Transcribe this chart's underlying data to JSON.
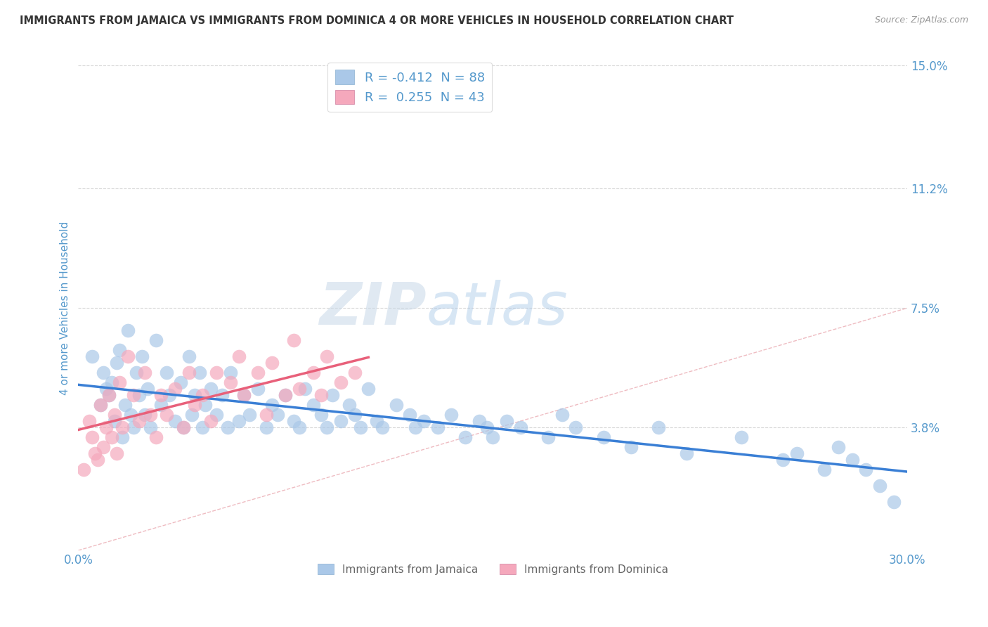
{
  "title": "IMMIGRANTS FROM JAMAICA VS IMMIGRANTS FROM DOMINICA 4 OR MORE VEHICLES IN HOUSEHOLD CORRELATION CHART",
  "source": "Source: ZipAtlas.com",
  "ylabel": "4 or more Vehicles in Household",
  "xmin": 0.0,
  "xmax": 0.3,
  "ymin": 0.0,
  "ymax": 0.15,
  "yticks_right": [
    0.0,
    0.038,
    0.075,
    0.112,
    0.15
  ],
  "ytick_labels_right": [
    "",
    "3.8%",
    "7.5%",
    "11.2%",
    "15.0%"
  ],
  "legend_r_entries": [
    {
      "label": "R = -0.412  N = 88",
      "color": "#aac8e8"
    },
    {
      "label": "R =  0.255  N = 43",
      "color": "#f5a8bc"
    }
  ],
  "legend_entry_names": [
    "Immigrants from Jamaica",
    "Immigrants from Dominica"
  ],
  "jamaica_color": "#aac8e8",
  "dominica_color": "#f5a8bc",
  "jamaica_line_color": "#3a7fd5",
  "dominica_line_color": "#e8607a",
  "watermark_zip": "ZIP",
  "watermark_atlas": "atlas",
  "background_color": "#ffffff",
  "grid_color": "#cccccc",
  "title_color": "#333333",
  "tick_color": "#5599cc",
  "jamaica_x": [
    0.005,
    0.008,
    0.009,
    0.01,
    0.011,
    0.012,
    0.013,
    0.014,
    0.015,
    0.016,
    0.017,
    0.018,
    0.019,
    0.02,
    0.021,
    0.022,
    0.023,
    0.024,
    0.025,
    0.026,
    0.028,
    0.03,
    0.032,
    0.033,
    0.035,
    0.037,
    0.038,
    0.04,
    0.041,
    0.042,
    0.044,
    0.045,
    0.046,
    0.048,
    0.05,
    0.052,
    0.054,
    0.055,
    0.058,
    0.06,
    0.062,
    0.065,
    0.068,
    0.07,
    0.072,
    0.075,
    0.078,
    0.08,
    0.082,
    0.085,
    0.088,
    0.09,
    0.092,
    0.095,
    0.098,
    0.1,
    0.102,
    0.105,
    0.108,
    0.11,
    0.115,
    0.12,
    0.122,
    0.125,
    0.13,
    0.135,
    0.14,
    0.145,
    0.148,
    0.15,
    0.155,
    0.16,
    0.17,
    0.175,
    0.18,
    0.19,
    0.2,
    0.21,
    0.22,
    0.24,
    0.255,
    0.26,
    0.27,
    0.275,
    0.28,
    0.285,
    0.29,
    0.295
  ],
  "jamaica_y": [
    0.06,
    0.045,
    0.055,
    0.05,
    0.048,
    0.052,
    0.04,
    0.058,
    0.062,
    0.035,
    0.045,
    0.068,
    0.042,
    0.038,
    0.055,
    0.048,
    0.06,
    0.042,
    0.05,
    0.038,
    0.065,
    0.045,
    0.055,
    0.048,
    0.04,
    0.052,
    0.038,
    0.06,
    0.042,
    0.048,
    0.055,
    0.038,
    0.045,
    0.05,
    0.042,
    0.048,
    0.038,
    0.055,
    0.04,
    0.048,
    0.042,
    0.05,
    0.038,
    0.045,
    0.042,
    0.048,
    0.04,
    0.038,
    0.05,
    0.045,
    0.042,
    0.038,
    0.048,
    0.04,
    0.045,
    0.042,
    0.038,
    0.05,
    0.04,
    0.038,
    0.045,
    0.042,
    0.038,
    0.04,
    0.038,
    0.042,
    0.035,
    0.04,
    0.038,
    0.035,
    0.04,
    0.038,
    0.035,
    0.042,
    0.038,
    0.035,
    0.032,
    0.038,
    0.03,
    0.035,
    0.028,
    0.03,
    0.025,
    0.032,
    0.028,
    0.025,
    0.02,
    0.015
  ],
  "dominica_x": [
    0.002,
    0.004,
    0.005,
    0.006,
    0.007,
    0.008,
    0.009,
    0.01,
    0.011,
    0.012,
    0.013,
    0.014,
    0.015,
    0.016,
    0.018,
    0.02,
    0.022,
    0.024,
    0.026,
    0.028,
    0.03,
    0.032,
    0.035,
    0.038,
    0.04,
    0.042,
    0.045,
    0.048,
    0.05,
    0.055,
    0.058,
    0.06,
    0.065,
    0.068,
    0.07,
    0.075,
    0.078,
    0.08,
    0.085,
    0.088,
    0.09,
    0.095,
    0.1
  ],
  "dominica_y": [
    0.025,
    0.04,
    0.035,
    0.03,
    0.028,
    0.045,
    0.032,
    0.038,
    0.048,
    0.035,
    0.042,
    0.03,
    0.052,
    0.038,
    0.06,
    0.048,
    0.04,
    0.055,
    0.042,
    0.035,
    0.048,
    0.042,
    0.05,
    0.038,
    0.055,
    0.045,
    0.048,
    0.04,
    0.055,
    0.052,
    0.06,
    0.048,
    0.055,
    0.042,
    0.058,
    0.048,
    0.065,
    0.05,
    0.055,
    0.048,
    0.06,
    0.052,
    0.055
  ]
}
